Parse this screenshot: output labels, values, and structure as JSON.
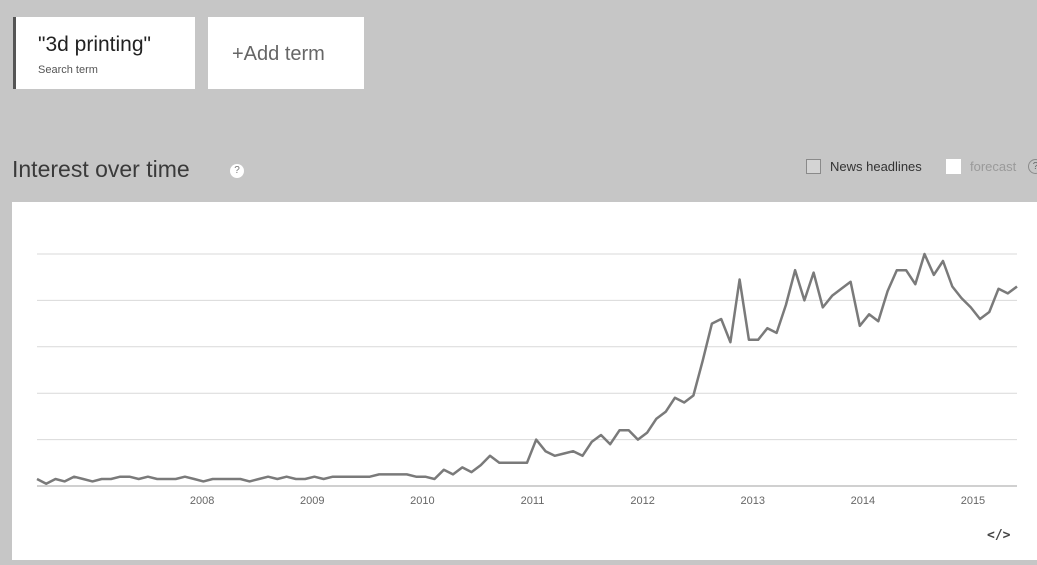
{
  "search_terms": [
    {
      "label": "\"3d printing\"",
      "sublabel": "Search term"
    }
  ],
  "add_term_label": "+Add term",
  "section": {
    "title": "Interest over time",
    "help_icon": "question-circle-icon"
  },
  "legend": {
    "news_headlines": {
      "label": "News headlines",
      "checked": false
    },
    "forecast": {
      "label": "forecast",
      "checked": false
    }
  },
  "embed_icon": "</>",
  "colors": {
    "line": "#7a7a7a",
    "grid": "#d9d9d9",
    "panel": "#ffffff",
    "header_band": "#c6c6c6"
  },
  "chart_data": {
    "type": "line",
    "x_labels": [
      "2008",
      "2009",
      "2010",
      "2011",
      "2012",
      "2013",
      "2014",
      "2015"
    ],
    "x_start": 2007.0,
    "x_end": 2015.9,
    "ylim": [
      0,
      100
    ],
    "grid_lines": [
      0,
      20,
      40,
      60,
      80,
      100
    ],
    "grid": true,
    "y_tick_labels_shown": false,
    "series": [
      {
        "values": [
          3,
          1,
          3,
          2,
          4,
          3,
          2,
          3,
          3,
          4,
          4,
          3,
          4,
          3,
          3,
          3,
          4,
          3,
          2,
          3,
          3,
          3,
          3,
          2,
          3,
          4,
          3,
          4,
          3,
          3,
          4,
          3,
          4,
          4,
          4,
          4,
          4,
          5,
          5,
          5,
          5,
          4,
          4,
          3,
          7,
          5,
          8,
          6,
          9,
          13,
          10,
          10,
          10,
          10,
          20,
          15,
          13,
          14,
          15,
          13,
          19,
          22,
          18,
          24,
          24,
          20,
          23,
          29,
          32,
          38,
          36,
          39,
          54,
          70,
          72,
          62,
          89,
          63,
          63,
          68,
          66,
          78,
          93,
          80,
          92,
          77,
          82,
          85,
          88,
          69,
          74,
          71,
          84,
          93,
          93,
          87,
          100,
          91,
          97,
          86,
          81,
          77,
          72,
          75,
          85,
          83,
          86
        ]
      }
    ]
  }
}
